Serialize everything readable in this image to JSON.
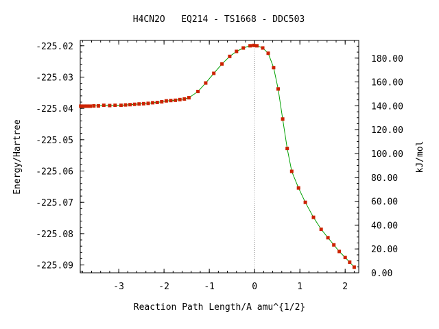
{
  "chart_data": {
    "type": "line",
    "title": "H4CN2O   EQ214 - TS1668 - DDC503",
    "xlabel": "Reaction Path Length/A amu^{1/2}",
    "ylabel": "Energy/Hartree",
    "y2label": "kJ/mol",
    "xlim": [
      -3.85,
      2.3
    ],
    "ylim": [
      -225.0925,
      -225.0183
    ],
    "y2lim": [
      0.0,
      194.8
    ],
    "x_ticks": [
      "-3",
      "-2",
      "-1",
      "0",
      "1",
      "2"
    ],
    "y_ticks": [
      "-225.02",
      "-225.03",
      "-225.04",
      "-225.05",
      "-225.06",
      "-225.07",
      "-225.08",
      "-225.09"
    ],
    "y2_ticks": [
      "0.00",
      "20.00",
      "40.00",
      "60.00",
      "80.00",
      "100.00",
      "120.00",
      "140.00",
      "160.00",
      "180.00"
    ],
    "ts_marker_x": 0.0,
    "line_color": "#00a000",
    "marker_color": "#cc2200",
    "series": [
      {
        "x": [
          -3.84,
          -3.77,
          -3.7,
          -3.63,
          -3.55,
          -3.45,
          -3.33,
          -3.2,
          -3.08,
          -2.95,
          -2.85,
          -2.75,
          -2.65,
          -2.55,
          -2.45,
          -2.35,
          -2.25,
          -2.15,
          -2.05,
          -1.95,
          -1.85,
          -1.75,
          -1.65,
          -1.55,
          -1.45,
          -1.25,
          -1.08,
          -0.9,
          -0.72,
          -0.55,
          -0.4,
          -0.25,
          -0.1,
          -0.02,
          0.05,
          0.18,
          0.3,
          0.42,
          0.52,
          0.62,
          0.72,
          0.82,
          0.97,
          1.12,
          1.3,
          1.47,
          1.62,
          1.75,
          1.87,
          2.0,
          2.1,
          2.2
        ],
        "y": [
          -225.0393,
          -225.0393,
          -225.0393,
          -225.0393,
          -225.0392,
          -225.0392,
          -225.039,
          -225.0391,
          -225.039,
          -225.039,
          -225.0389,
          -225.0388,
          -225.0387,
          -225.0386,
          -225.0385,
          -225.0384,
          -225.0382,
          -225.0381,
          -225.0379,
          -225.0376,
          -225.0375,
          -225.0374,
          -225.0372,
          -225.037,
          -225.0366,
          -225.0346,
          -225.0319,
          -225.0288,
          -225.0258,
          -225.0234,
          -225.0218,
          -225.0207,
          -225.02,
          -225.0199,
          -225.02,
          -225.0207,
          -225.0224,
          -225.027,
          -225.0338,
          -225.0434,
          -225.0528,
          -225.0601,
          -225.0654,
          -225.07,
          -225.0748,
          -225.0786,
          -225.0813,
          -225.0836,
          -225.0857,
          -225.0876,
          -225.0891,
          -225.0907
        ]
      }
    ]
  }
}
